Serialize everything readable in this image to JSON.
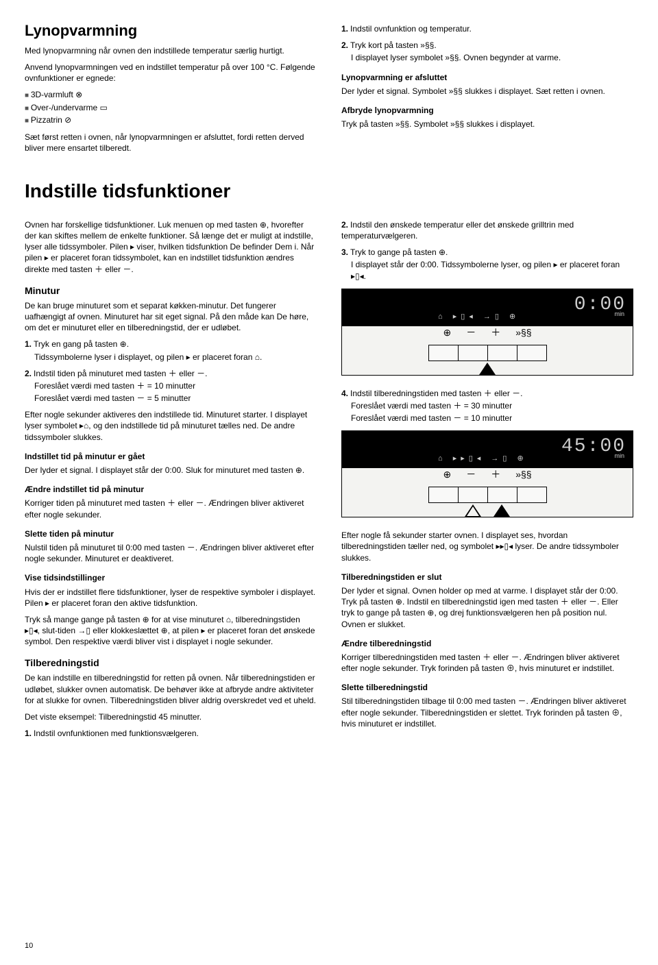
{
  "lynop": {
    "title": "Lynopvarmning",
    "p1": "Med lynopvarmning når ovnen den indstillede temperatur særlig hurtigt.",
    "p2": "Anvend lynopvarmningen ved en indstillet temperatur på over 100 °C. Følgende ovnfunktioner er egnede:",
    "items": [
      "3D-varmluft ⊗",
      "Over-/undervarme ▭",
      "Pizzatrin ⊘"
    ],
    "p3": "Sæt først retten i ovnen, når lynopvarmningen er afsluttet, fordi retten derved bliver mere ensartet tilberedt.",
    "r1n": "1.",
    "r1": "Indstil ovnfunktion og temperatur.",
    "r2n": "2.",
    "r2a": "Tryk kort på tasten ",
    "r2b": ".",
    "r2c": "I displayet lyser symbolet ",
    "r2d": ". Ovnen begynder at varme.",
    "h1": "Lynopvarmning er afsluttet",
    "r3a": "Der lyder et signal. Symbolet ",
    "r3b": " slukkes i displayet. Sæt retten i ovnen.",
    "h2": "Afbryde lynopvarmning",
    "r4a": "Tryk på tasten ",
    "r4b": ". Symbolet ",
    "r4c": " slukkes i displayet."
  },
  "tids": {
    "title": "Indstille tidsfunktioner",
    "intro": "Ovnen har forskellige tidsfunktioner. Luk menuen op med tasten ⊕, hvorefter der kan skiftes mellem de enkelte funktioner. Så længe det er muligt at indstille, lyser alle tidssymboler. Pilen ▸ viser, hvilken tidsfunktion De befinder Dem i. Når pilen ▸ er placeret foran tidssymbolet, kan en indstillet tidsfunktion ændres direkte med tasten ＋ eller －."
  },
  "minutur": {
    "title": "Minutur",
    "p1": "De kan bruge minuturet som et separat køkken-minutur. Det fungerer uafhængigt af ovnen. Minuturet har sit eget signal. På den måde kan De høre, om det er minuturet eller en tilberedningstid, der er udløbet.",
    "s1n": "1.",
    "s1a": "Tryk en gang på tasten ⊕.",
    "s1b": "Tidssymbolerne lyser i displayet, og pilen ▸ er placeret foran ⌂.",
    "s2n": "2.",
    "s2a": "Indstil tiden på minuturet med tasten ＋ eller －.",
    "s2b": "Foreslået værdi med tasten ＋ = 10 minutter",
    "s2c": "Foreslået værdi med tasten － = 5 minutter",
    "p2": "Efter nogle sekunder aktiveres den indstillede tid. Minuturet starter. I displayet lyser symbolet ▸⌂, og den indstillede tid på minuturet tælles ned. De andre tidssymboler slukkes.",
    "h1": "Indstillet tid på minutur er gået",
    "p3": "Der lyder et signal. I displayet står der 0:00. Sluk for minuturet med tasten ⊕.",
    "h2": "Ændre indstillet tid på minutur",
    "p4": "Korriger tiden på minuturet med tasten ＋ eller －. Ændringen bliver aktiveret efter nogle sekunder.",
    "h3": "Slette tiden på minutur",
    "p5": "Nulstil tiden på minuturet til 0:00 med tasten －. Ændringen bliver aktiveret efter nogle sekunder. Minuturet er deaktiveret.",
    "h4": "Vise tidsindstillinger",
    "p6": "Hvis der er indstillet flere tidsfunktioner, lyser de respektive symboler i displayet. Pilen ▸ er placeret foran den aktive tidsfunktion.",
    "p7": "Tryk så mange gange på tasten ⊕ for at vise minuturet ⌂, tilberedningstiden ▸▯◂, slut-tiden →▯ eller klokkeslættet ⊕, at pilen ▸ er placeret foran det ønskede symbol. Den respektive værdi bliver vist i displayet i nogle sekunder."
  },
  "tilb": {
    "title": "Tilberedningstid",
    "p1": "De kan indstille en tilberedningstid for retten på ovnen. Når tilberedningstiden er udløbet, slukker ovnen automatisk. De behøver ikke at afbryde andre aktiviteter for at slukke for ovnen. Tilberedningstiden bliver aldrig overskredet ved et uheld.",
    "p2": "Det viste eksempel: Tilberedningstid 45 minutter.",
    "s1n": "1.",
    "s1": "Indstil ovnfunktionen med funktionsvælgeren."
  },
  "rcol": {
    "s2n": "2.",
    "s2": "Indstil den ønskede temperatur eller det ønskede grilltrin med temperaturvælgeren.",
    "s3n": "3.",
    "s3a": "Tryk to gange på tasten ⊕.",
    "s3b": "I displayet står der 0:00. Tidssymbolerne lyser, og pilen ▸ er placeret foran ▸▯◂.",
    "s4n": "4.",
    "s4a": "Indstil tilberedningstiden med tasten ＋ eller －.",
    "s4b": "Foreslået værdi med tasten ＋ = 30 minutter",
    "s4c": "Foreslået værdi med tasten － = 10 minutter",
    "p1": "Efter nogle få sekunder starter ovnen. I displayet ses, hvordan tilberedningstiden tæller ned, og symbolet ▸▸▯◂ lyser. De andre tidssymboler slukkes.",
    "h1": "Tilberedningstiden er slut",
    "p2": "Der lyder et signal. Ovnen holder op med at varme. I displayet står der 0:00. Tryk på tasten ⊕. Indstil en tilberedningstid igen med tasten ＋ eller －. Eller tryk to gange på tasten ⊕, og drej funktionsvælgeren hen på position nul. Ovnen er slukket.",
    "h2": "Ændre tilberedningstid",
    "p3": "Korriger tilberedningstiden med tasten ＋ eller －. Ændringen bliver aktiveret efter nogle sekunder. Tryk forinden på tasten ⊕, hvis minuturet er indstillet.",
    "h3": "Slette tilberedningstid",
    "p4": "Stil tilberedningstiden tilbage til 0:00 med tasten －. Ændringen bliver aktiveret efter nogle sekunder. Tilberedningstiden er slettet. Tryk forinden på tasten ⊕, hvis minuturet er indstillet."
  },
  "panel1": {
    "time": "0:00",
    "min": "min",
    "icons": "⌂  ▸▯◂  →▯  ⊕",
    "b1": "⊕",
    "b2": "－",
    "b3": "＋",
    "b4": "»§§"
  },
  "panel2": {
    "time": "45:00",
    "min": "min",
    "icons": "⌂  ▸▸▯◂  →▯  ⊕",
    "b1": "⊕",
    "b2": "－",
    "b3": "＋",
    "b4": "»§§"
  },
  "page": "10",
  "sym": {
    "fast": "»§§",
    "wave": "»§§"
  }
}
